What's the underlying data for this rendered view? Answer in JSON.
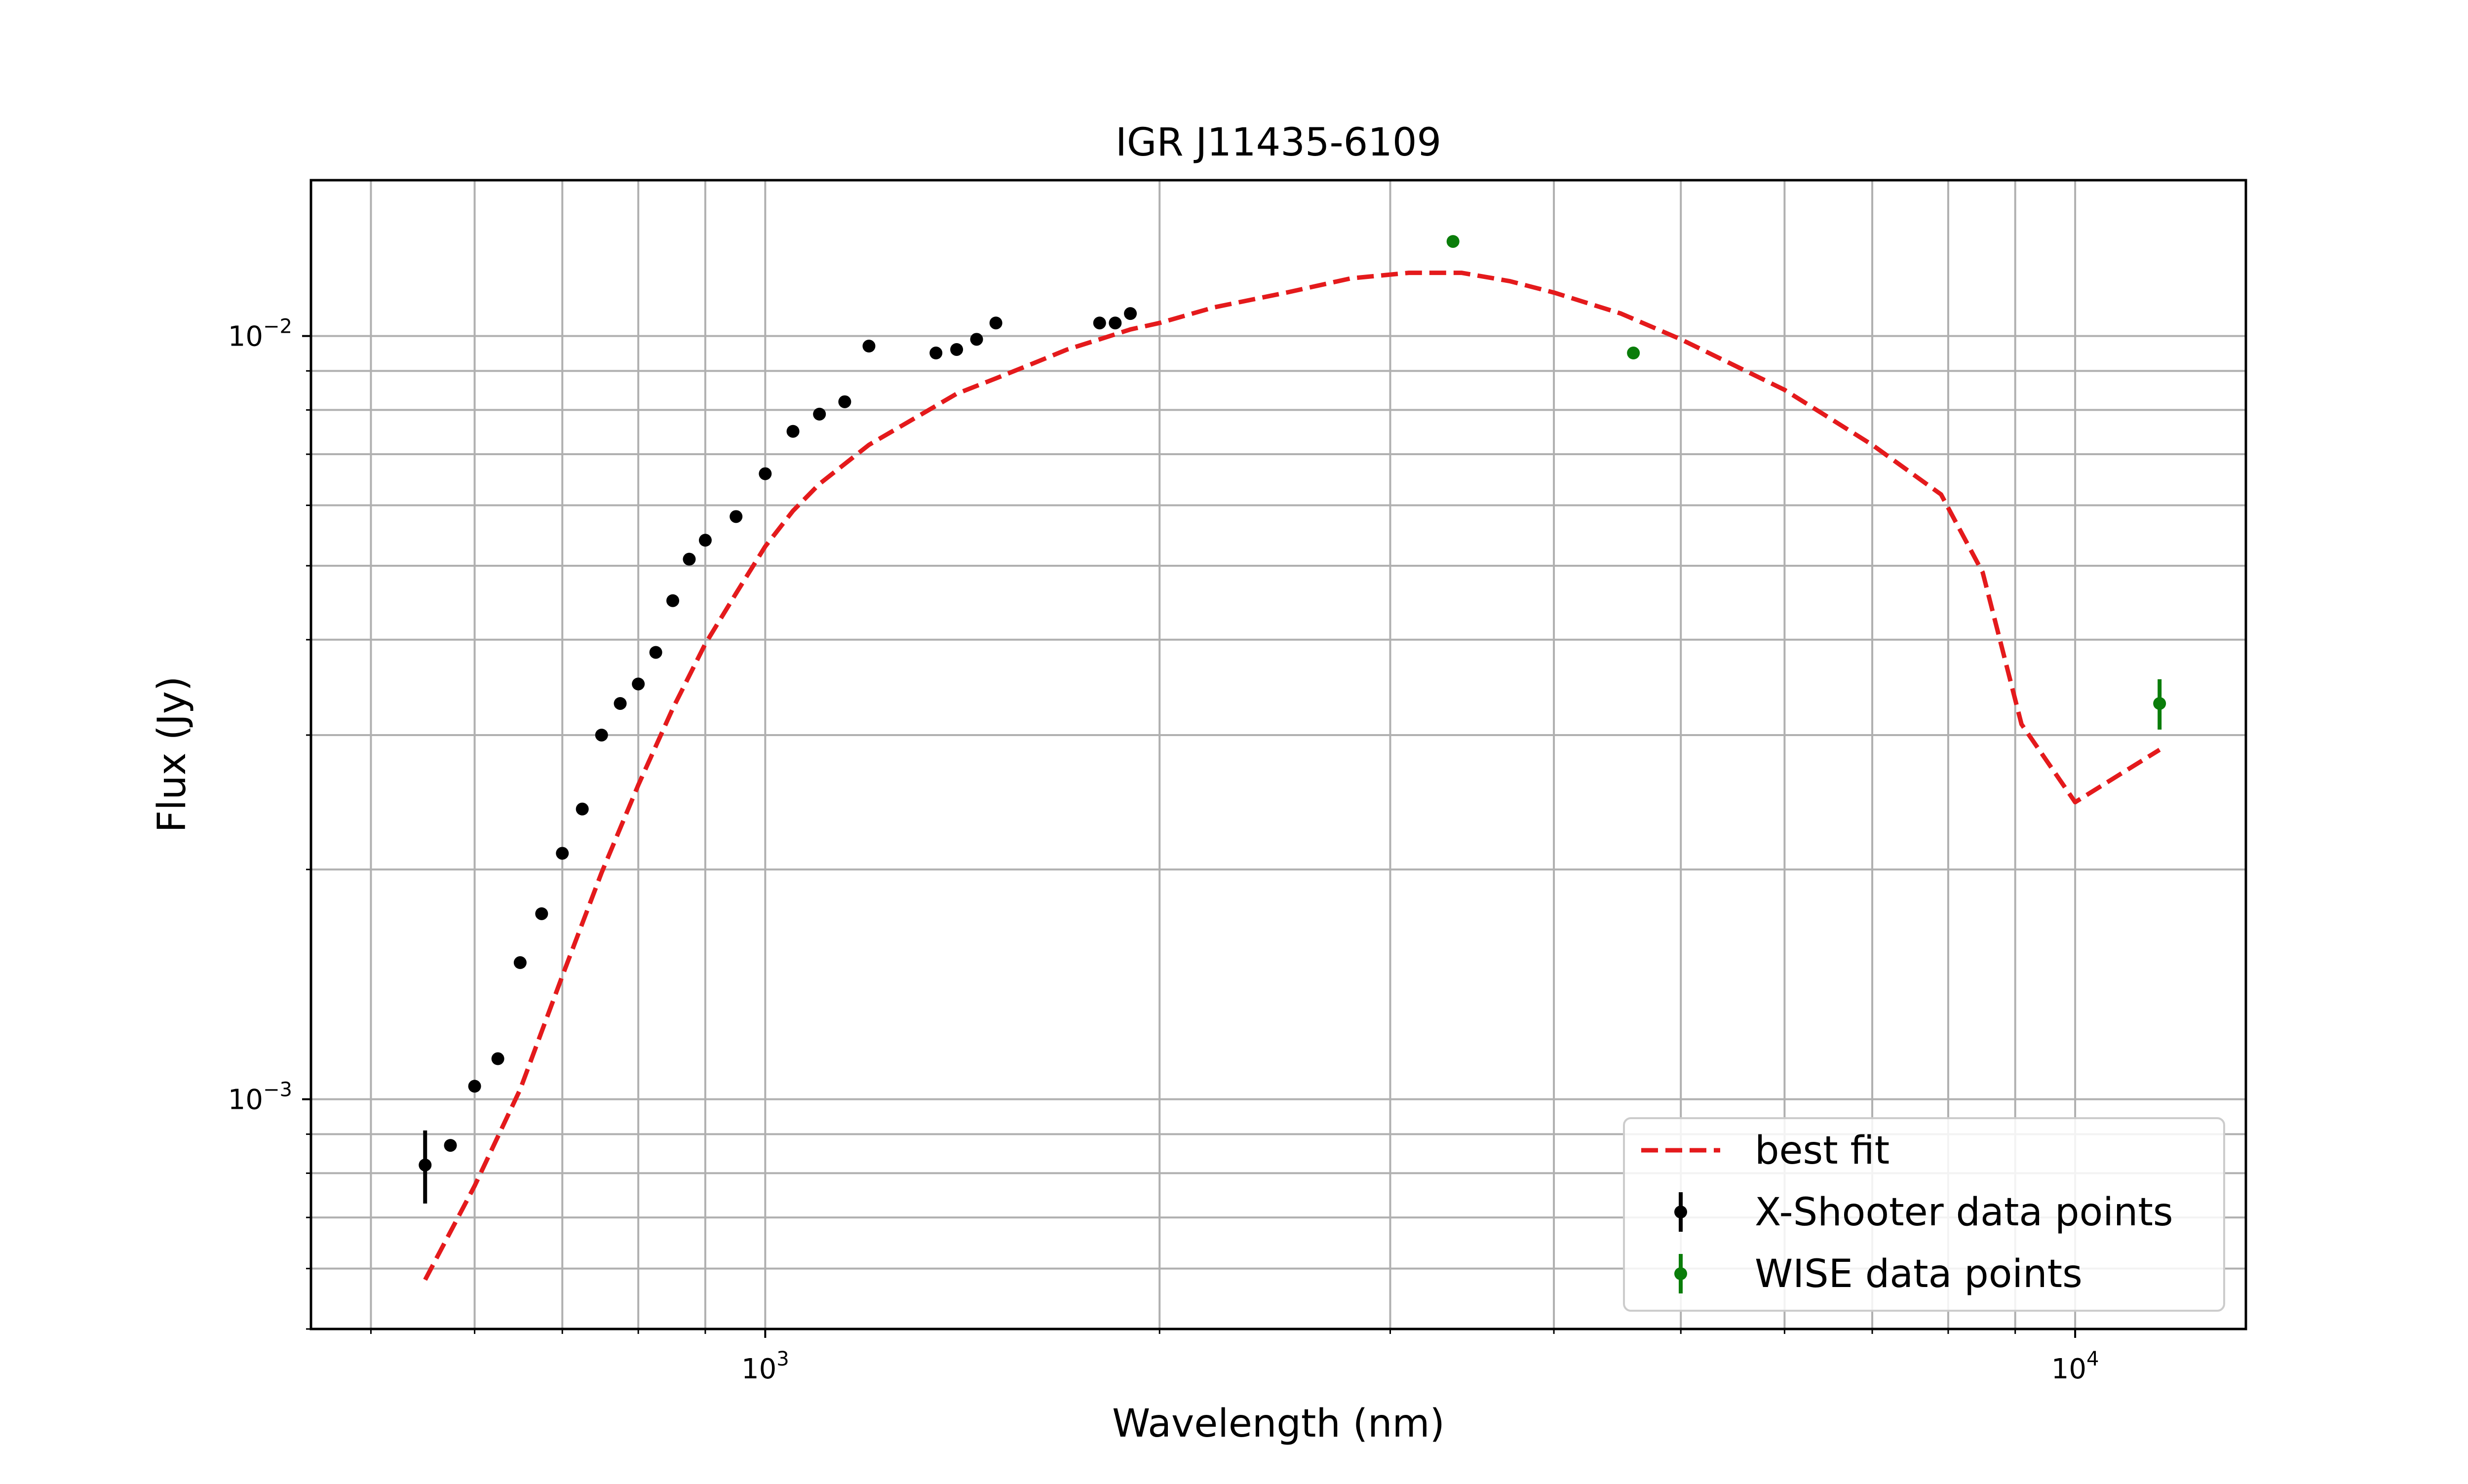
{
  "chart_data": {
    "type": "scatter",
    "title": "IGR J11435-6109",
    "xlabel": "Wavelength (nm)",
    "ylabel": "Flux (Jy)",
    "xscale": "log",
    "yscale": "log",
    "xlim": [
      450,
      13500
    ],
    "ylim": [
      0.0005,
      0.016
    ],
    "grid": true,
    "legend_position": "lower right",
    "x_ticks": [
      {
        "value": 1000,
        "base": "10",
        "exp": "3"
      },
      {
        "value": 10000,
        "base": "10",
        "exp": "4"
      }
    ],
    "y_ticks": [
      {
        "value": 0.001,
        "base": "10",
        "exp": "−3"
      },
      {
        "value": 0.01,
        "base": "10",
        "exp": "−2"
      }
    ],
    "legend": [
      {
        "name": "best fit",
        "kind": "line"
      },
      {
        "name": "X-Shooter data points",
        "kind": "errorbar"
      },
      {
        "name": "WISE data points",
        "kind": "errorbar"
      }
    ],
    "colors": {
      "fit": "#e41a1c",
      "xshooter": "#000000",
      "wise": "#0a7d0a",
      "grid": "#b0b0b0"
    },
    "series": [
      {
        "name": "best fit",
        "type": "line",
        "style": "dashed",
        "x": [
          550,
          600,
          650,
          700,
          750,
          800,
          850,
          900,
          950,
          1000,
          1050,
          1100,
          1200,
          1300,
          1400,
          1500,
          1600,
          1700,
          1800,
          1900,
          2000,
          2200,
          2500,
          2800,
          3100,
          3400,
          3700,
          4000,
          4500,
          5000,
          6000,
          7000,
          7900,
          8500,
          9100,
          10000,
          11600
        ],
        "y": [
          0.00058,
          0.00077,
          0.00103,
          0.00145,
          0.00198,
          0.00258,
          0.00325,
          0.00395,
          0.0046,
          0.0053,
          0.0059,
          0.0064,
          0.0072,
          0.0078,
          0.0084,
          0.0088,
          0.0092,
          0.0096,
          0.0099,
          0.0102,
          0.0104,
          0.0109,
          0.0114,
          0.0119,
          0.0121,
          0.0121,
          0.0118,
          0.0114,
          0.0107,
          0.0099,
          0.0085,
          0.0072,
          0.0062,
          0.0049,
          0.0031,
          0.00245,
          0.00287
        ]
      },
      {
        "name": "X-Shooter data points",
        "type": "errorbar",
        "x": [
          550,
          575,
          600,
          625,
          650,
          675,
          700,
          725,
          750,
          775,
          800,
          825,
          850,
          875,
          900,
          950,
          1000,
          1050,
          1100,
          1150,
          1200,
          1350,
          1400,
          1450,
          1500,
          1800,
          1850,
          1900
        ],
        "y": [
          0.00082,
          0.00087,
          0.00104,
          0.00113,
          0.00151,
          0.00175,
          0.0021,
          0.0024,
          0.003,
          0.0033,
          0.0035,
          0.00385,
          0.0045,
          0.0051,
          0.0054,
          0.0058,
          0.0066,
          0.0075,
          0.0079,
          0.0082,
          0.0097,
          0.0095,
          0.0096,
          0.0099,
          0.0104,
          0.0104,
          0.0104,
          0.0107
        ],
        "yerr": [
          9e-05,
          0,
          0,
          0,
          0,
          0,
          0,
          0,
          0,
          0,
          0,
          0,
          0,
          0,
          0,
          0,
          0,
          0,
          0,
          0,
          0,
          0,
          0,
          0,
          0,
          0,
          0,
          0
        ]
      },
      {
        "name": "WISE data points",
        "type": "errorbar",
        "x": [
          3350,
          4600,
          11600
        ],
        "y": [
          0.0133,
          0.0095,
          0.0033
        ],
        "yerr": [
          0,
          0,
          0.00025
        ]
      }
    ]
  }
}
